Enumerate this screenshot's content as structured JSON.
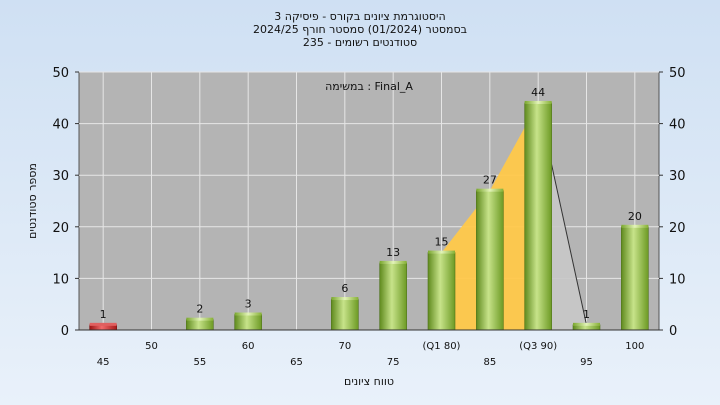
{
  "title_lines": [
    "היסטוגרמת ציונים בקורס - פיסיקה 3",
    "בסמסטר  (01/2024)  סמסטר חורף 2024/25",
    "סטודנטים רשומים - 235"
  ],
  "chart_data": {
    "type": "bar",
    "annotation": "במשימה : Final_A",
    "ylabel": "מספר סטודנטים",
    "xlabel": "טווח ציונים",
    "ylim": [
      0,
      50
    ],
    "yticks": [
      0,
      10,
      20,
      30,
      40,
      50
    ],
    "grid": true,
    "categories": [
      "45",
      "50",
      "55",
      "60",
      "65",
      "70",
      "75",
      "(Q1 80)",
      "85",
      "(Q3 90)",
      "95",
      "100"
    ],
    "values": [
      1,
      null,
      2,
      3,
      null,
      6,
      13,
      15,
      27,
      44,
      1,
      20
    ],
    "colors": {
      "plot_background": "#b4b4b4",
      "bar_default": "#8fbc3a",
      "bar_low": "#d03030",
      "quartile_area": "#ffc94a"
    }
  }
}
